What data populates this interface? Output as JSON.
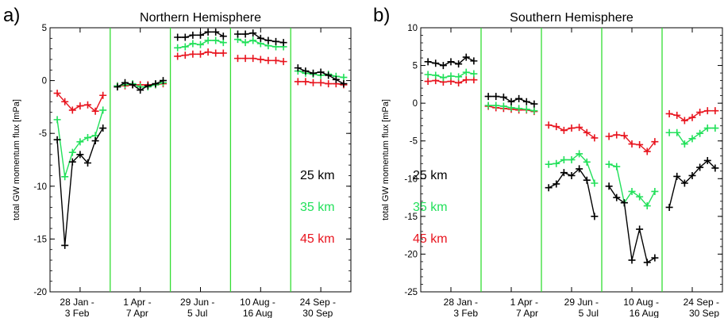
{
  "colors": {
    "series_25km": "#000000",
    "series_35km": "#22e05a",
    "series_45km": "#e8141e",
    "separator": "#33dd33",
    "axis": "#000000"
  },
  "chart_data": [
    {
      "type": "line",
      "panel_label": "a)",
      "title": "Northern Hemisphere",
      "xlabel": "",
      "ylabel": "total GW momentum flux [mPa]",
      "ylim": [
        -20,
        5
      ],
      "yticks": [
        -20,
        -15,
        -10,
        -5,
        0,
        5
      ],
      "ytick_labels": [
        "-20",
        "-15",
        "-10",
        "-5",
        "0",
        "5"
      ],
      "grid": false,
      "legend_placement": "right, inside plot",
      "categories": [
        {
          "line1": "28 Jan -",
          "line2": "3 Feb"
        },
        {
          "line1": "1 Apr -",
          "line2": "7 Apr"
        },
        {
          "line1": "29 Jun -",
          "line2": "5 Jul"
        },
        {
          "line1": "10 Aug -",
          "line2": "16 Aug"
        },
        {
          "line1": "24 Sep -",
          "line2": "30 Sep"
        }
      ],
      "series": [
        {
          "name": "25 km",
          "groups": [
            [
              -5.6,
              -15.6,
              -7.7,
              -7.0,
              -7.8,
              -5.7,
              -4.5
            ],
            [
              -0.6,
              -0.2,
              -0.4,
              -0.9,
              -0.5,
              -0.3,
              0.0
            ],
            [
              4.1,
              4.1,
              4.3,
              4.3,
              4.6,
              4.6,
              4.2
            ],
            [
              4.4,
              4.4,
              4.5,
              4.0,
              3.8,
              3.7,
              3.6
            ],
            [
              1.2,
              0.9,
              0.7,
              0.8,
              0.5,
              0.1,
              -0.3
            ]
          ]
        },
        {
          "name": "35 km",
          "groups": [
            [
              -3.7,
              -9.1,
              -6.8,
              -5.8,
              -5.4,
              -5.2,
              -2.8
            ],
            [
              -0.5,
              -0.4,
              -0.3,
              -0.6,
              -0.6,
              -0.4,
              -0.2
            ],
            [
              3.1,
              3.2,
              3.5,
              3.4,
              3.8,
              3.8,
              3.6
            ],
            [
              3.9,
              3.6,
              3.8,
              3.5,
              3.3,
              3.2,
              3.2
            ],
            [
              0.9,
              0.7,
              0.6,
              0.5,
              0.6,
              0.4,
              0.3
            ]
          ]
        },
        {
          "name": "45 km",
          "groups": [
            [
              -1.2,
              -2.0,
              -2.8,
              -2.4,
              -2.3,
              -2.9,
              -1.4
            ],
            [
              -0.5,
              -0.5,
              -0.4,
              -0.4,
              -0.4,
              -0.4,
              -0.3
            ],
            [
              2.3,
              2.4,
              2.5,
              2.5,
              2.7,
              2.6,
              2.6
            ],
            [
              2.1,
              2.1,
              2.1,
              2.0,
              1.9,
              1.9,
              1.8
            ],
            [
              -0.1,
              -0.1,
              -0.2,
              -0.2,
              -0.3,
              -0.3,
              -0.4
            ]
          ]
        }
      ]
    },
    {
      "type": "line",
      "panel_label": "b)",
      "title": "Southern Hemisphere",
      "xlabel": "",
      "ylabel": "total GW momentum flux [mPa]",
      "ylim": [
        -25,
        10
      ],
      "yticks": [
        -25,
        -20,
        -15,
        -10,
        -5,
        0,
        5,
        10
      ],
      "ytick_labels": [
        "-25",
        "-20",
        "-15",
        "-10",
        "-5",
        "0",
        "5",
        "10"
      ],
      "grid": false,
      "legend_placement": "left, inside plot",
      "categories": [
        {
          "line1": "28 Jan -",
          "line2": "3 Feb"
        },
        {
          "line1": "1 Apr -",
          "line2": "7 Apr"
        },
        {
          "line1": "29 Jun -",
          "line2": "5 Jul"
        },
        {
          "line1": "10 Aug -",
          "line2": "16 Aug"
        },
        {
          "line1": "24 Sep -",
          "line2": "30 Sep"
        }
      ],
      "series": [
        {
          "name": "25 km",
          "groups": [
            [
              5.5,
              5.3,
              5.0,
              5.5,
              5.2,
              6.1,
              5.6
            ],
            [
              0.9,
              0.9,
              0.8,
              0.2,
              0.6,
              0.2,
              -0.1
            ],
            [
              -11.2,
              -10.7,
              -9.2,
              -9.6,
              -8.7,
              -10.2,
              -15.0
            ],
            [
              -11.0,
              -12.5,
              -13.2,
              -20.8,
              -16.7,
              -21.1,
              -20.5
            ],
            [
              -13.8,
              -9.7,
              -10.6,
              -9.6,
              -8.5,
              -7.6,
              -8.6
            ]
          ]
        },
        {
          "name": "35 km",
          "groups": [
            [
              3.8,
              3.7,
              3.4,
              3.6,
              3.5,
              4.1,
              3.9
            ],
            [
              -0.3,
              -0.3,
              -0.4,
              -0.6,
              -0.7,
              -0.8,
              -1.0
            ],
            [
              -8.1,
              -8.0,
              -7.5,
              -7.5,
              -6.7,
              -7.8,
              -10.6
            ],
            [
              -8.1,
              -8.4,
              -13.2,
              -11.7,
              -12.4,
              -13.6,
              -11.7
            ],
            [
              -3.9,
              -3.9,
              -5.4,
              -4.7,
              -4.0,
              -3.3,
              -3.3
            ]
          ]
        },
        {
          "name": "45 km",
          "groups": [
            [
              2.9,
              3.0,
              2.8,
              2.9,
              2.7,
              3.1,
              3.1
            ],
            [
              -0.4,
              -0.6,
              -0.7,
              -0.8,
              -0.9,
              -0.9,
              -1.1
            ],
            [
              -2.9,
              -3.1,
              -3.6,
              -3.3,
              -3.2,
              -3.9,
              -4.6
            ],
            [
              -4.4,
              -4.2,
              -4.3,
              -5.4,
              -5.5,
              -6.4,
              -5.1
            ],
            [
              -1.4,
              -1.6,
              -2.3,
              -1.9,
              -1.2,
              -1.0,
              -1.0
            ]
          ]
        }
      ]
    }
  ]
}
